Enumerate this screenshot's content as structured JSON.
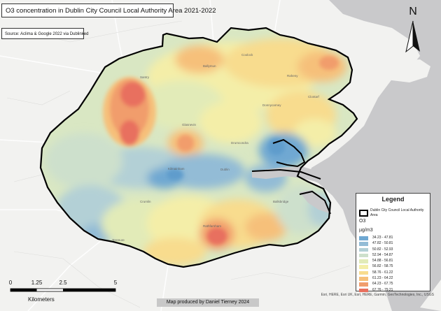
{
  "title": "O3 concentration in Dublin City Council Local Authority Area 2021-2022",
  "source": "Source: Aclima & Google 2022 via Dublinked",
  "north_arrow": {
    "label": "N",
    "icon": "north-arrow-icon"
  },
  "legend": {
    "title": "Legend",
    "boundary_label": "Dublin City Council Local Authority Area",
    "layer_name": "O3",
    "unit": "µg/m3",
    "classes": [
      {
        "label": "34.23 - 47.81",
        "color": "#6fa8d2"
      },
      {
        "label": "47.82 - 50.81",
        "color": "#93bcd6"
      },
      {
        "label": "50.82 - 52.93",
        "color": "#b3d0d6"
      },
      {
        "label": "52.94 - 54.87",
        "color": "#cde0cc"
      },
      {
        "label": "54.88 - 56.81",
        "color": "#e2ebb8"
      },
      {
        "label": "56.82 - 58.75",
        "color": "#f4eea8"
      },
      {
        "label": "58.76 - 61.22",
        "color": "#f8dc8e"
      },
      {
        "label": "61.23 - 64.22",
        "color": "#f6c07a"
      },
      {
        "label": "64.23 - 67.75",
        "color": "#f19d6c"
      },
      {
        "label": "67.76 - 79.21",
        "color": "#e8705e"
      }
    ]
  },
  "scale_bar": {
    "ticks": [
      "0",
      "1.25",
      "2.5",
      "5"
    ],
    "tick_values": [
      0,
      1.25,
      2.5,
      5
    ],
    "units": "Kilometers"
  },
  "credit": "Map produced by Daniel Tierney 2024",
  "attribution": "Esri, HERE, Esri UK, Esri, HERE, Garmin, GeoTechnologies, Inc., USGS"
}
